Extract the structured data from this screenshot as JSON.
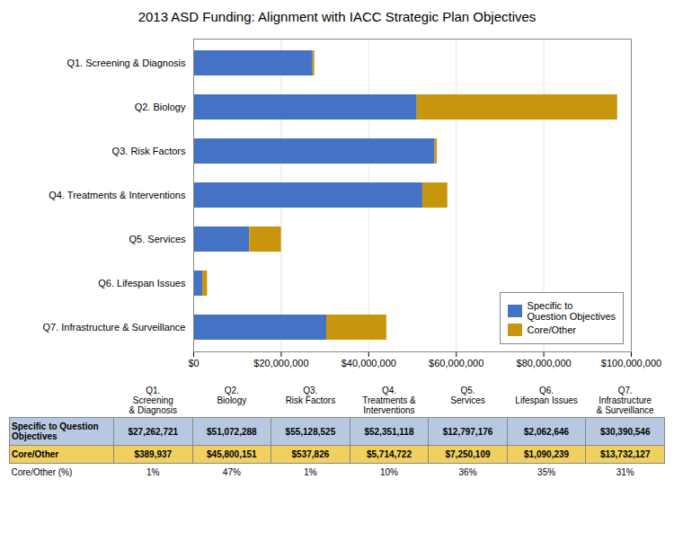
{
  "chart_data": {
    "type": "bar",
    "title": "2013 ASD Funding: Alignment with IACC Strategic Plan Objectives",
    "orientation": "horizontal",
    "stacked": true,
    "categories": [
      "Q1. Screening & Diagnosis",
      "Q2. Biology",
      "Q3. Risk Factors",
      "Q4. Treatments & Interventions",
      "Q5. Services",
      "Q6. Lifespan Issues",
      "Q7. Infrastructure & Surveillance"
    ],
    "series": [
      {
        "name": "Specific to\nQuestion Objectives",
        "color": "#4472C4",
        "values": [
          27262721,
          51072288,
          55128525,
          52351118,
          12797176,
          2062646,
          30390546
        ]
      },
      {
        "name": "Core/Other",
        "color": "#C8960C",
        "values": [
          389937,
          45800151,
          537826,
          5714722,
          7250109,
          1090239,
          13732127
        ]
      }
    ],
    "xlim": [
      0,
      100000000
    ],
    "xticks": [
      {
        "value": 0,
        "label": "$0"
      },
      {
        "value": 20000000,
        "label": "$20,000,000"
      },
      {
        "value": 40000000,
        "label": "$40,000,000"
      },
      {
        "value": 60000000,
        "label": "$60,000,000"
      },
      {
        "value": 80000000,
        "label": "$80,000,000"
      },
      {
        "value": 100000000,
        "label": "$100,000,000"
      }
    ],
    "grid": true,
    "legend": "lower right",
    "table": {
      "columns": [
        "Q1.\nScreening\n& Diagnosis",
        "Q2.\nBiology",
        "Q3.\nRisk Factors",
        "Q4.\nTreatments &\nInterventions",
        "Q5.\nServices",
        "Q6.\nLifespan Issues",
        "Q7.\nInfrastructure\n& Surveillance"
      ],
      "rows": [
        {
          "label": "Specific to Question\nObjectives",
          "color": "#B8C8E0",
          "cells": [
            "$27,262,721",
            "$51,072,288",
            "$55,128,525",
            "$52,351,118",
            "$12,797,176",
            "$2,062,646",
            "$30,390,546"
          ]
        },
        {
          "label": "Core/Other",
          "color": "#F0D060",
          "cells": [
            "$389,937",
            "$45,800,151",
            "$537,826",
            "$5,714,722",
            "$7,250,109",
            "$1,090,239",
            "$13,732,127"
          ]
        },
        {
          "label": "Core/Other (%)",
          "cells": [
            "1%",
            "47%",
            "1%",
            "10%",
            "36%",
            "35%",
            "31%"
          ]
        }
      ]
    }
  }
}
